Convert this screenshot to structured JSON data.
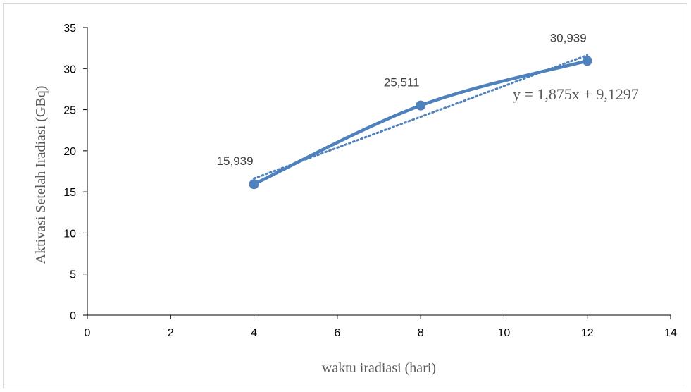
{
  "chart_data": {
    "type": "scatter",
    "title": "",
    "xlabel": "waktu iradiasi (hari)",
    "ylabel": "Aktivasi Setelah Iradiasi (GBq)",
    "xlim": [
      0,
      14
    ],
    "ylim": [
      0,
      35
    ],
    "xticks": [
      0,
      2,
      4,
      6,
      8,
      10,
      12,
      14
    ],
    "yticks": [
      0,
      5,
      10,
      15,
      20,
      25,
      30,
      35
    ],
    "grid": false,
    "legend": "none",
    "series": [
      {
        "x": [
          4,
          8,
          12
        ],
        "y": [
          15.939,
          25.511,
          30.939
        ],
        "data_labels": [
          "15,939",
          "25,511",
          "30,939"
        ],
        "line": "smooth",
        "color": "#4f81bd"
      }
    ],
    "trendline": {
      "type": "linear",
      "slope": 1.875,
      "intercept": 9.1297,
      "x_range": [
        4,
        12
      ],
      "style": "dotted",
      "color": "#4f81bd",
      "equation_label": "y = 1,875x + 9,1297"
    }
  }
}
